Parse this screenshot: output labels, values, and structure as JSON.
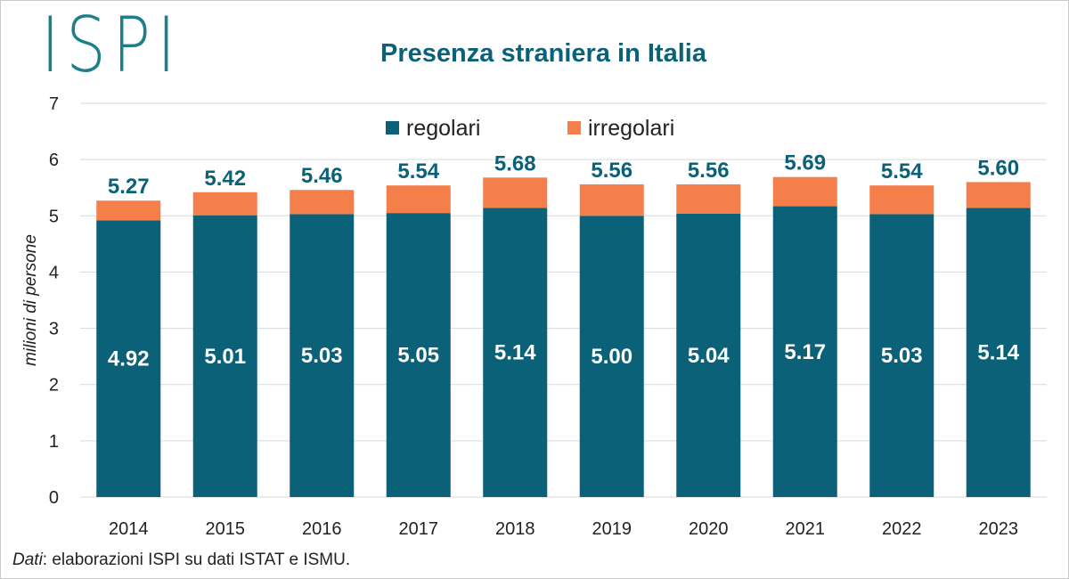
{
  "header": {
    "logo_text": "ISPI",
    "title": "Presenza straniera in Italia"
  },
  "footer": {
    "source_label": "Dati",
    "source_text": ": elaborazioni ISPI su dati ISTAT e ISMU."
  },
  "colors": {
    "regolari": "#0b6178",
    "irregolari": "#f57f4b",
    "total_label": "#0b6178",
    "inside_label": "#ffffff",
    "grid": "#d9d9d9"
  },
  "chart_data": {
    "type": "bar",
    "stacked": true,
    "title": "Presenza straniera in Italia",
    "ylabel": "milioni di persone",
    "xlabel": "",
    "ylim": [
      0,
      7
    ],
    "yticks": [
      0,
      1,
      2,
      3,
      4,
      5,
      6,
      7
    ],
    "grid": true,
    "legend_position": "top",
    "categories": [
      "2014",
      "2015",
      "2016",
      "2017",
      "2018",
      "2019",
      "2020",
      "2021",
      "2022",
      "2023"
    ],
    "series": [
      {
        "name": "regolari",
        "values": [
          4.92,
          5.01,
          5.03,
          5.05,
          5.14,
          5.0,
          5.04,
          5.17,
          5.03,
          5.14
        ]
      },
      {
        "name": "irregolari",
        "values": [
          0.35,
          0.41,
          0.43,
          0.49,
          0.54,
          0.56,
          0.52,
          0.52,
          0.51,
          0.46
        ]
      }
    ],
    "totals": [
      5.27,
      5.42,
      5.46,
      5.54,
      5.68,
      5.56,
      5.56,
      5.69,
      5.54,
      5.6
    ],
    "regolari_labels": [
      "4.92",
      "5.01",
      "5.03",
      "5.05",
      "5.14",
      "5.00",
      "5.04",
      "5.17",
      "5.03",
      "5.14"
    ],
    "total_labels": [
      "5.27",
      "5.42",
      "5.46",
      "5.54",
      "5.68",
      "5.56",
      "5.56",
      "5.69",
      "5.54",
      "5.60"
    ]
  }
}
